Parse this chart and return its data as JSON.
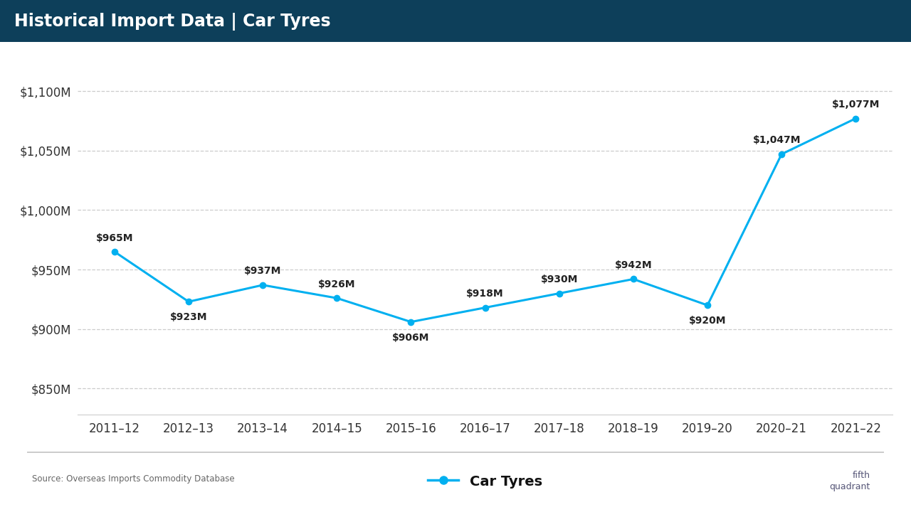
{
  "title": "Historical Import Data | Car Tyres",
  "title_bg_color": "#0d3f5a",
  "title_text_color": "#ffffff",
  "line_color": "#00b0f0",
  "marker_color": "#00b0f0",
  "bg_color": "#ffffff",
  "plot_bg_color": "#ffffff",
  "grid_color": "#cccccc",
  "categories": [
    "2011–12",
    "2012–13",
    "2013–14",
    "2014–15",
    "2015–16",
    "2016–17",
    "2017–18",
    "2018–19",
    "2019–20",
    "2020–21",
    "2021–22"
  ],
  "values": [
    965,
    923,
    937,
    926,
    906,
    918,
    930,
    942,
    920,
    1047,
    1077
  ],
  "labels": [
    "$965M",
    "$923M",
    "$937M",
    "$926M",
    "$906M",
    "$918M",
    "$930M",
    "$942M",
    "$920M",
    "$1,047M",
    "$1,077M"
  ],
  "label_offsets_x": [
    0,
    0,
    0,
    0,
    0,
    0,
    0,
    0,
    0,
    -5,
    0
  ],
  "label_offsets_y": [
    14,
    -16,
    14,
    14,
    -16,
    14,
    14,
    14,
    -16,
    14,
    14
  ],
  "ylabel_ticks": [
    850,
    900,
    950,
    1000,
    1050,
    1100
  ],
  "ylabel_labels": [
    "$850M",
    "$900M",
    "$950M",
    "$1,000M",
    "$1,050M",
    "$1,100M"
  ],
  "ylim": [
    828,
    1112
  ],
  "legend_label": "Car Tyres",
  "source_text": "Source: Overseas Imports Commodity Database",
  "label_fontsize": 10,
  "axis_fontsize": 12,
  "title_fontsize": 17,
  "legend_fontsize": 14,
  "tick_label_color": "#333333",
  "data_label_color": "#222222",
  "separator_color": "#cccccc"
}
